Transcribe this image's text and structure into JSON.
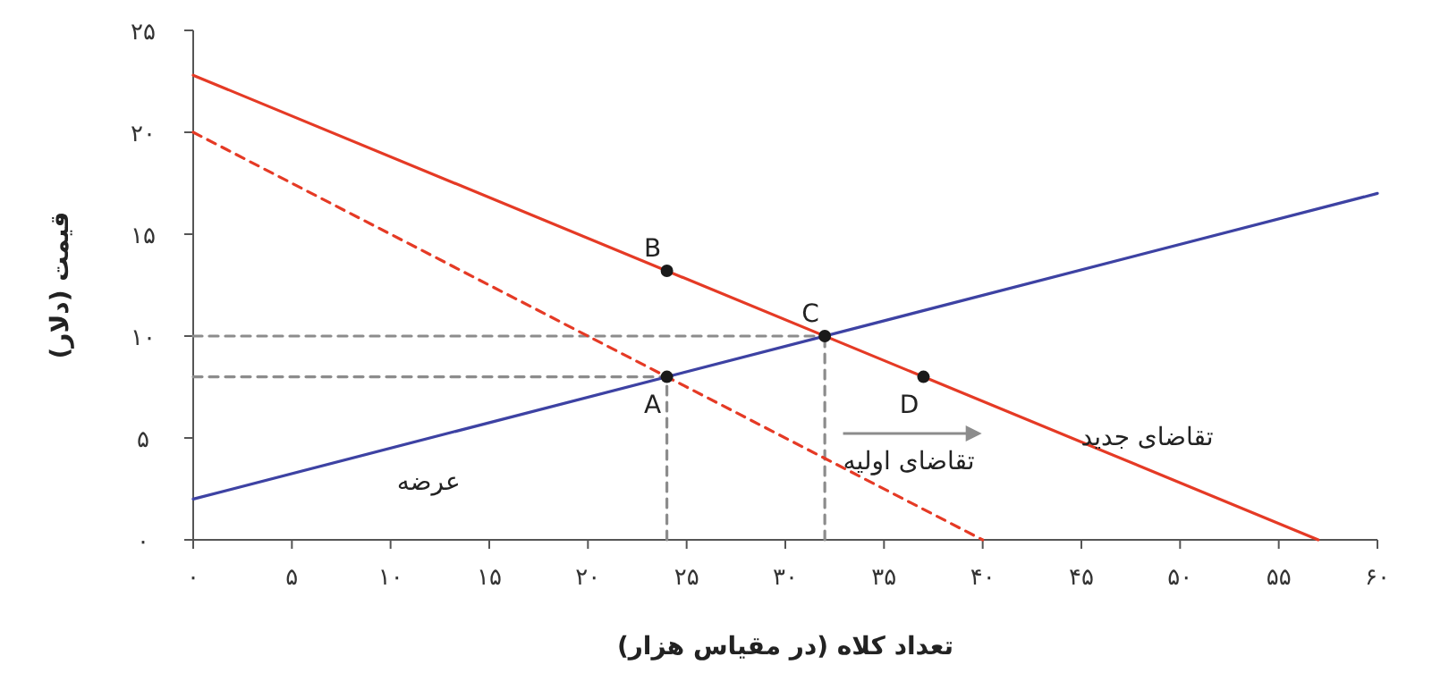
{
  "chart_data": {
    "type": "line",
    "xlabel": "تعداد کلاه (در مقیاس هزار)",
    "ylabel": "قیمت (دلار)",
    "xlim": [
      0,
      60
    ],
    "ylim": [
      0,
      25
    ],
    "xticks": [
      {
        "value": 0,
        "label": "۰"
      },
      {
        "value": 5,
        "label": "۵"
      },
      {
        "value": 10,
        "label": "۱۰"
      },
      {
        "value": 15,
        "label": "۱۵"
      },
      {
        "value": 20,
        "label": "۲۰"
      },
      {
        "value": 25,
        "label": "۲۵"
      },
      {
        "value": 30,
        "label": "۳۰"
      },
      {
        "value": 35,
        "label": "۳۵"
      },
      {
        "value": 40,
        "label": "۴۰"
      },
      {
        "value": 45,
        "label": "۴۵"
      },
      {
        "value": 50,
        "label": "۵۰"
      },
      {
        "value": 55,
        "label": "۵۵"
      },
      {
        "value": 60,
        "label": "۶۰"
      }
    ],
    "yticks": [
      {
        "value": 0,
        "label": "۰"
      },
      {
        "value": 5,
        "label": "۵"
      },
      {
        "value": 10,
        "label": "۱۰"
      },
      {
        "value": 15,
        "label": "۱۵"
      },
      {
        "value": 20,
        "label": "۲۰"
      },
      {
        "value": 25,
        "label": "۲۵"
      }
    ],
    "grid": false,
    "series": [
      {
        "type": "line",
        "color": "#8c8c8c",
        "line_style": "dashed",
        "x": [
          0,
          32
        ],
        "values": [
          10,
          10
        ]
      },
      {
        "type": "line",
        "color": "#8c8c8c",
        "line_style": "dashed",
        "x": [
          0,
          24
        ],
        "values": [
          8,
          8
        ]
      },
      {
        "type": "line",
        "color": "#8c8c8c",
        "line_style": "dashed",
        "x": [
          24,
          24
        ],
        "values": [
          0,
          8
        ]
      },
      {
        "type": "line",
        "color": "#8c8c8c",
        "line_style": "dashed",
        "x": [
          32,
          32
        ],
        "values": [
          0,
          10
        ]
      },
      {
        "type": "line",
        "color": "#3d42a3",
        "line_style": "solid",
        "x": [
          0,
          60
        ],
        "values": [
          2,
          17
        ]
      },
      {
        "type": "line",
        "color": "#e53a25",
        "line_style": "dashed",
        "x": [
          0,
          40
        ],
        "values": [
          20,
          0
        ]
      },
      {
        "type": "line",
        "color": "#e53a25",
        "line_style": "solid",
        "x": [
          0,
          57
        ],
        "values": [
          22.8,
          0
        ]
      },
      {
        "type": "scatter",
        "color": "#1a1a1a",
        "marker": "circle",
        "x": [
          24,
          24,
          32,
          37
        ],
        "values": [
          8,
          13.2,
          10,
          8
        ],
        "value_labels": [
          "A",
          "B",
          "C",
          "D"
        ]
      }
    ],
    "annotations": [
      {
        "text": "عرضه",
        "x": 9.6,
        "y": 4.4
      },
      {
        "text": "تقاضای اولیه",
        "x": 32.2,
        "y": 3.9
      },
      {
        "text": "تقاضای جدید",
        "x": 44.25,
        "y": 5.1
      }
    ]
  }
}
